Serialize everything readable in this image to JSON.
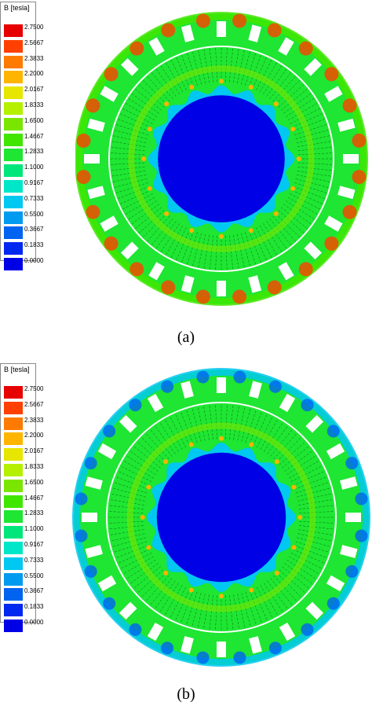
{
  "legend": {
    "title": "B [tesla]",
    "entries": [
      {
        "value": "2.7500",
        "color": "#e60000"
      },
      {
        "value": "2.5667",
        "color": "#ff4000"
      },
      {
        "value": "2.3833",
        "color": "#ff7a00"
      },
      {
        "value": "2.2000",
        "color": "#ffb400"
      },
      {
        "value": "2.0167",
        "color": "#e6e600"
      },
      {
        "value": "1.8333",
        "color": "#b4f000"
      },
      {
        "value": "1.6500",
        "color": "#7ae600"
      },
      {
        "value": "1.4667",
        "color": "#40e600"
      },
      {
        "value": "1.2833",
        "color": "#1ee632"
      },
      {
        "value": "1.1000",
        "color": "#00e67a"
      },
      {
        "value": "0.9167",
        "color": "#00e6c8"
      },
      {
        "value": "0.7333",
        "color": "#00c8f0"
      },
      {
        "value": "0.5500",
        "color": "#009bf0"
      },
      {
        "value": "0.3667",
        "color": "#0064f0"
      },
      {
        "value": "0.1833",
        "color": "#0028f0"
      },
      {
        "value": "0.0000",
        "color": "#0000e6"
      }
    ]
  },
  "panels": [
    {
      "caption": "(a)",
      "stator_color": "#1ee632",
      "rim_color": "#40e600",
      "hot_color": "#ff4000",
      "bore_color": "#0000e6"
    },
    {
      "caption": "(b)",
      "stator_color": "#1ee632",
      "rim_color": "#00c8f0",
      "hot_color": "#ff7a00",
      "bore_color": "#0000e6"
    }
  ]
}
